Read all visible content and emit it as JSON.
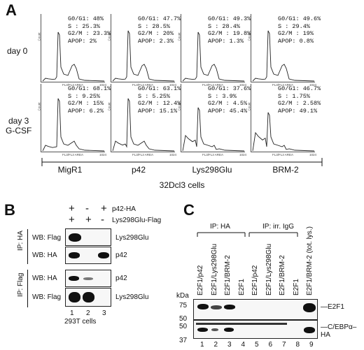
{
  "panelA": {
    "letter": "A",
    "row_labels": {
      "day0": "day 0",
      "day3_line1": "day 3",
      "day3_line2": "G-CSF"
    },
    "axis_y": "Count",
    "axis_x": "FL3/FL3 AREA",
    "axis_x_end": "1024",
    "columns": [
      "MigR1",
      "p42",
      "Lys298Glu",
      "BRM-2"
    ],
    "footer": "32Dcl3 cells",
    "day0": [
      [
        "G0/G1: 48%",
        "S      : 25.3%",
        "G2/M  : 23.3%",
        "APOP: 2%"
      ],
      [
        "G0/G1: 47.7%",
        "S      : 28.5%",
        "G2/M  : 20%",
        "APOP: 2.3%"
      ],
      [
        "G0/G1: 49.3%",
        "S      : 28.4%",
        "G2/M  : 19.8%",
        "APOP: 1.3%"
      ],
      [
        "G0/G1: 49.6%",
        "S      : 29.4%",
        "G2/M  : 19%",
        "APOP: 0.8%"
      ]
    ],
    "day3": [
      [
        "G0/G1: 68.1%",
        "S      : 9.25%",
        "G2/M  : 15%",
        "APOP: 6.2%"
      ],
      [
        "G0/G1: 63.1%",
        "S      : 5.25%",
        "G2/M  : 12.4%",
        "APOP: 15.1%"
      ],
      [
        "G0/G1: 37.6%",
        "S      : 3.9%",
        "G2/M  : 4.5%",
        "APOP: 45.4%"
      ],
      [
        "G0/G1: 46.7%",
        "S      : 1.75%",
        "G2/M  : 2.58%",
        "APOP: 49.1%"
      ]
    ]
  },
  "panelB": {
    "letter": "B",
    "plus_minus_row1": [
      "+",
      "-",
      "+"
    ],
    "plus_minus_row2": [
      "+",
      "+",
      "-"
    ],
    "row1_label": "p42-HA",
    "row2_label": "Lys298Glu-Flag",
    "ip_ha": "IP: HA",
    "ip_flag": "IP: Flag",
    "wb_flag": "WB: Flag",
    "wb_ha": "WB: HA",
    "band_labels": [
      "Lys298Glu",
      "p42",
      "p42",
      "Lys298Glu"
    ],
    "lanes": [
      "1",
      "2",
      "3"
    ],
    "footer": "293T cells"
  },
  "panelC": {
    "letter": "C",
    "ip_ha": "IP: HA",
    "ip_irr": "IP: irr. IgG",
    "lanes": [
      "E2F1/p42",
      "E2F1/Lys298Glu",
      "E2F1/BRM-2",
      "E2F1",
      "E2F1/p42",
      "E2F1/Lys298Glu",
      "E2F1/BRM-2",
      "E2F1",
      "E2F1/BRM-2 (tot. lys.)"
    ],
    "lane_numbers": [
      "1",
      "2",
      "3",
      "4",
      "5",
      "6",
      "7",
      "8",
      "9"
    ],
    "kda": "kDa",
    "markers": [
      "75",
      "50",
      "50",
      "37"
    ],
    "right_labels": [
      "E2F1",
      "C/EBPα–HA"
    ]
  }
}
